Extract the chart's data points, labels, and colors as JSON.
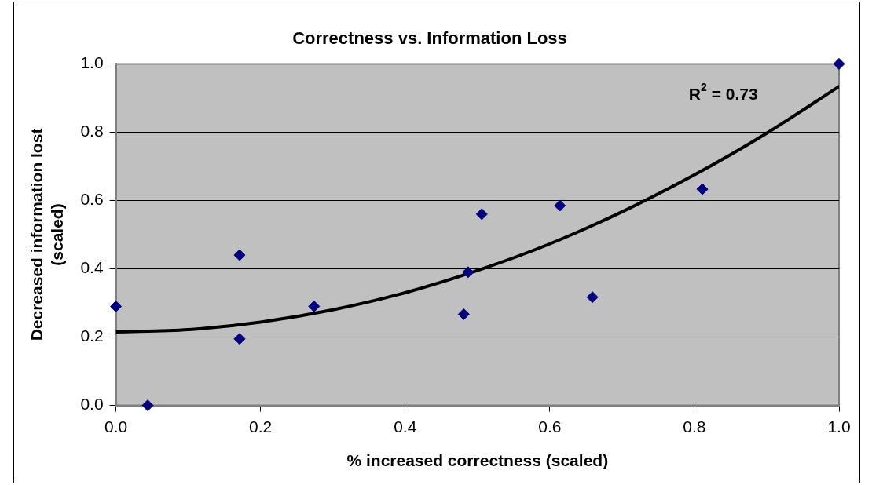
{
  "chart_data": {
    "type": "scatter",
    "title": "Correctness vs. Information Loss",
    "xlabel": "% increased correctness (scaled)",
    "ylabel": "Decreased information lost\n(scaled)",
    "xlim": [
      0,
      1
    ],
    "ylim": [
      0,
      1
    ],
    "xticks": [
      {
        "value": 0,
        "label": "0.0"
      },
      {
        "value": 0.2,
        "label": "0.2"
      },
      {
        "value": 0.4,
        "label": "0.4"
      },
      {
        "value": 0.6,
        "label": "0.6"
      },
      {
        "value": 0.8,
        "label": "0.8"
      },
      {
        "value": 1,
        "label": "1.0"
      }
    ],
    "yticks": [
      {
        "value": 0,
        "label": "0.0"
      },
      {
        "value": 0.2,
        "label": "0.2"
      },
      {
        "value": 0.4,
        "label": "0.4"
      },
      {
        "value": 0.6,
        "label": "0.6"
      },
      {
        "value": 0.8,
        "label": "0.8"
      },
      {
        "value": 1,
        "label": "1.0"
      }
    ],
    "grid": "y",
    "legend": false,
    "marker": "diamond",
    "series": [
      {
        "color": "#000080",
        "x": [
          0,
          0.044,
          0.171,
          0.171,
          0.274,
          0.481,
          0.487,
          0.506,
          0.614,
          0.659,
          0.811,
          1
        ],
        "values": [
          0.29,
          0,
          0.44,
          0.195,
          0.29,
          0.267,
          0.39,
          0.56,
          0.585,
          0.317,
          0.633,
          1
        ]
      },
      {
        "type": "line",
        "color": "#000000",
        "marker": "none",
        "line_style": "solid",
        "x": [
          0,
          0.1,
          0.2,
          0.3,
          0.4,
          0.5,
          0.6,
          0.7,
          0.8,
          0.9,
          1
        ],
        "values": [
          0.215,
          0.222,
          0.244,
          0.28,
          0.33,
          0.395,
          0.473,
          0.567,
          0.675,
          0.797,
          0.934
        ]
      }
    ],
    "annotations": [
      "R$^{2}$ = 0.73"
    ]
  }
}
